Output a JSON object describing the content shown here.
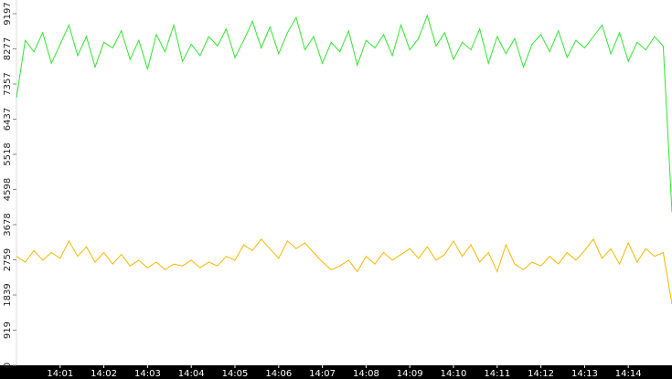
{
  "chart_data": {
    "type": "line",
    "x": [
      0,
      0.2,
      0.4,
      0.6,
      0.8,
      1,
      1.2,
      1.4,
      1.6,
      1.8,
      2,
      2.2,
      2.4,
      2.6,
      2.8,
      3,
      3.2,
      3.4,
      3.6,
      3.8,
      4,
      4.2,
      4.4,
      4.6,
      4.8,
      5,
      5.2,
      5.4,
      5.6,
      5.8,
      6,
      6.2,
      6.4,
      6.6,
      6.8,
      7,
      7.2,
      7.4,
      7.6,
      7.8,
      8,
      8.2,
      8.4,
      8.6,
      8.8,
      9,
      9.2,
      9.4,
      9.6,
      9.8,
      10,
      10.2,
      10.4,
      10.6,
      10.8,
      11,
      11.2,
      11.4,
      11.6,
      11.8,
      12,
      12.2,
      12.4,
      12.6,
      12.8,
      13,
      13.2,
      13.4,
      13.6,
      13.8,
      14,
      14.2,
      14.4,
      14.6,
      14.8,
      15
    ],
    "series": [
      {
        "color": "#2ee62e",
        "values": [
          7000,
          8500,
          8200,
          8700,
          7900,
          8400,
          8900,
          8100,
          8600,
          7800,
          8450,
          8300,
          8750,
          8000,
          8500,
          7750,
          8650,
          8200,
          8900,
          7950,
          8400,
          8100,
          8600,
          8350,
          8800,
          8050,
          8500,
          9000,
          8300,
          8850,
          8150,
          8700,
          9100,
          8250,
          8600,
          7900,
          8450,
          8200,
          8750,
          7850,
          8500,
          8300,
          8650,
          8100,
          8900,
          8250,
          8550,
          9150,
          8350,
          8700,
          8000,
          8450,
          8250,
          8800,
          7900,
          8600,
          8150,
          8550,
          7800,
          8400,
          8650,
          8200,
          8750,
          8050,
          8500,
          8300,
          8600,
          8900,
          8150,
          8700,
          7950,
          8450,
          8250,
          8600,
          8350,
          4000
        ]
      },
      {
        "color": "#f5b800",
        "values": [
          2850,
          2700,
          3000,
          2750,
          2950,
          2800,
          3250,
          2850,
          3100,
          2700,
          2950,
          2650,
          2900,
          2600,
          2750,
          2550,
          2700,
          2500,
          2650,
          2600,
          2750,
          2550,
          2700,
          2600,
          2850,
          2750,
          3150,
          3000,
          3300,
          3050,
          2800,
          3250,
          3050,
          3200,
          2950,
          2700,
          2500,
          2600,
          2750,
          2450,
          2850,
          2650,
          2950,
          2750,
          2900,
          3050,
          2800,
          3100,
          2750,
          2900,
          3250,
          2850,
          3150,
          2700,
          2950,
          2450,
          3150,
          2650,
          2500,
          2700,
          2600,
          2850,
          2650,
          2950,
          2750,
          3000,
          3300,
          2800,
          3050,
          2650,
          3200,
          2700,
          3050,
          2850,
          2950,
          1600
        ]
      }
    ],
    "xlim": [
      0,
      15
    ],
    "xticks": [
      {
        "value": 1,
        "label": "14:01"
      },
      {
        "value": 2,
        "label": "14:02"
      },
      {
        "value": 3,
        "label": "14:03"
      },
      {
        "value": 4,
        "label": "14:04"
      },
      {
        "value": 5,
        "label": "14:05"
      },
      {
        "value": 6,
        "label": "14:06"
      },
      {
        "value": 7,
        "label": "14:07"
      },
      {
        "value": 8,
        "label": "14:08"
      },
      {
        "value": 9,
        "label": "14:09"
      },
      {
        "value": 10,
        "label": "14:10"
      },
      {
        "value": 11,
        "label": "14:11"
      },
      {
        "value": 12,
        "label": "14:12"
      },
      {
        "value": 13,
        "label": "14:13"
      },
      {
        "value": 14,
        "label": "14:14"
      }
    ],
    "ylim": [
      0,
      9555
    ],
    "yticks": [
      0,
      919,
      1839,
      2759,
      3678,
      4598,
      5518,
      6437,
      7357,
      8277,
      9197
    ]
  }
}
